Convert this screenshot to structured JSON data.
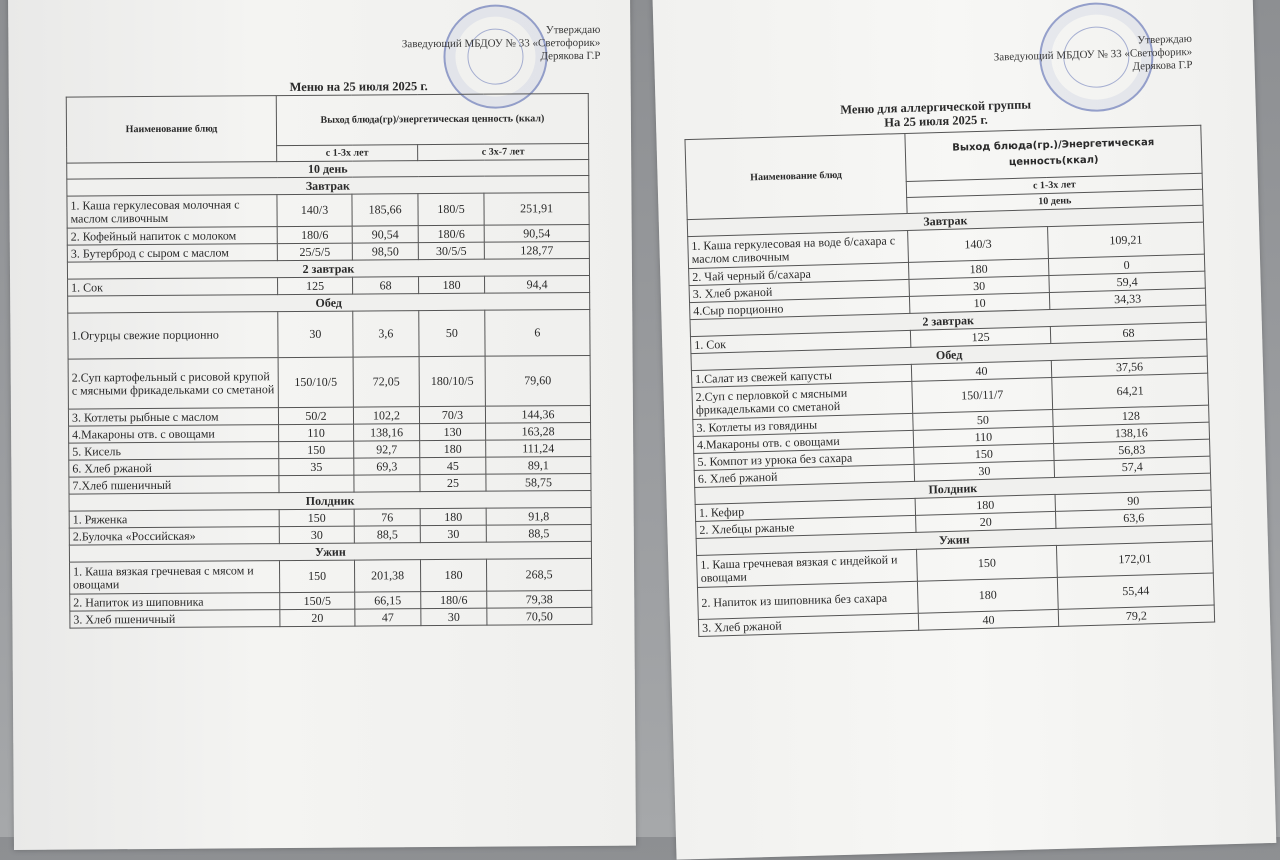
{
  "left": {
    "approve": [
      "Утверждаю",
      "Заведующий МБДОУ № 33 «Светофорик»",
      "Дерякова Г.Р"
    ],
    "title": "Меню на 25 июля 2025 г.",
    "header": {
      "name_col": "Наименование блюд",
      "output_col": "Выход блюда(гр)/энергетическая ценность (ккал)",
      "age1": "с 1-3х лет",
      "age2": "с 3х-7 лет"
    },
    "day": "10 день",
    "sections": [
      {
        "title": "Завтрак",
        "rows": [
          [
            "1. Каша геркулесовая молочная с маслом сливочным",
            "140/3",
            "185,66",
            "180/5",
            "251,91"
          ],
          [
            "2. Кофейный напиток с молоком",
            "180/6",
            "90,54",
            "180/6",
            "90,54"
          ],
          [
            "3. Бутерброд с сыром с маслом",
            "25/5/5",
            "98,50",
            "30/5/5",
            "128,77"
          ]
        ]
      },
      {
        "title": "2 завтрак",
        "rows": [
          [
            "1. Сок",
            "125",
            "68",
            "180",
            "94,4"
          ]
        ]
      },
      {
        "title": "Обед",
        "rows": [
          [
            "1.Огурцы свежие порционно",
            "30",
            "3,6",
            "50",
            "6"
          ],
          [
            "2.Суп картофельный с рисовой крупой с мясными фрикадельками со сметаной",
            "150/10/5",
            "72,05",
            "180/10/5",
            "79,60"
          ],
          [
            "3. Котлеты рыбные с маслом",
            "50/2",
            "102,2",
            "70/3",
            "144,36"
          ],
          [
            "4.Макароны отв. с овощами",
            "110",
            "138,16",
            "130",
            "163,28"
          ],
          [
            "5. Кисель",
            "150",
            "92,7",
            "180",
            "111,24"
          ],
          [
            "6. Хлеб ржаной",
            "35",
            "69,3",
            "45",
            "89,1"
          ],
          [
            "7.Хлеб пшеничный",
            "",
            "",
            "25",
            "58,75"
          ]
        ]
      },
      {
        "title": "Полдник",
        "rows": [
          [
            "1. Ряженка",
            "150",
            "76",
            "180",
            "91,8"
          ],
          [
            "2.Булочка «Российская»",
            "30",
            "88,5",
            "30",
            "88,5"
          ]
        ]
      },
      {
        "title": "Ужин",
        "rows": [
          [
            "1. Каша вязкая гречневая с мясом и овощами",
            "150",
            "201,38",
            "180",
            "268,5"
          ],
          [
            "2. Напиток из шиповника",
            "150/5",
            "66,15",
            "180/6",
            "79,38"
          ],
          [
            "3. Хлеб пшеничный",
            "20",
            "47",
            "30",
            "70,50"
          ]
        ]
      }
    ]
  },
  "right": {
    "approve": [
      "Утверждаю",
      "Заведующий МБДОУ № 33 «Светофорик»",
      "Дерякова Г.Р"
    ],
    "title_line1": "Меню для аллергической группы",
    "title_line2": "На 25 июля 2025 г.",
    "header": {
      "name_col": "Наименование блюд",
      "output_col": "Выход блюда(гр.)/Энергетическая ценность(ккал)",
      "age1": "с 1-3х лет",
      "day": "10 день"
    },
    "sections": [
      {
        "title": "Завтрак",
        "rows": [
          [
            "1. Каша геркулесовая на воде б/сахара с маслом сливочным",
            "140/3",
            "109,21"
          ],
          [
            "2. Чай черный б/сахара",
            "180",
            "0"
          ],
          [
            "3. Хлеб ржаной",
            "30",
            "59,4"
          ],
          [
            "4.Сыр порционно",
            "10",
            "34,33"
          ]
        ]
      },
      {
        "title": "2 завтрак",
        "rows": [
          [
            "1. Сок",
            "125",
            "68"
          ]
        ]
      },
      {
        "title": "Обед",
        "rows": [
          [
            "1.Салат из свежей капусты",
            "40",
            "37,56"
          ],
          [
            "2.Суп с перловкой с мясными фрикадельками со сметаной",
            "150/11/7",
            "64,21"
          ],
          [
            "3. Котлеты из говядины",
            "50",
            "128"
          ],
          [
            "4.Макароны отв. с овощами",
            "110",
            "138,16"
          ],
          [
            "5. Компот из урюка без сахара",
            "150",
            "56,83"
          ],
          [
            "6. Хлеб ржаной",
            "30",
            "57,4"
          ]
        ]
      },
      {
        "title": "Полдник",
        "rows": [
          [
            "1. Кефир",
            "180",
            "90"
          ],
          [
            "2. Хлебцы ржаные",
            "20",
            "63,6"
          ]
        ]
      },
      {
        "title": "Ужин",
        "rows": [
          [
            "1. Каша гречневая вязкая с индейкой и овощами",
            "150",
            "172,01"
          ],
          [
            "2. Напиток из шиповника без сахара",
            "180",
            "55,44"
          ],
          [
            "3. Хлеб ржаной",
            "40",
            "79,2"
          ]
        ]
      }
    ]
  }
}
